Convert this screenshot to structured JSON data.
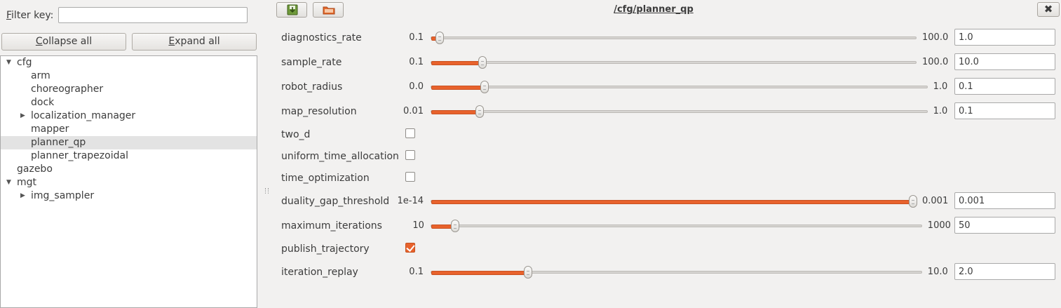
{
  "filter": {
    "label_prefix": "F",
    "label_rest": "ilter key:",
    "value": ""
  },
  "buttons": {
    "collapse_prefix": "C",
    "collapse_rest": "ollapse all",
    "expand_prefix": "E",
    "expand_rest": "xpand all"
  },
  "tree": [
    {
      "label": "cfg",
      "level": 0,
      "expander": "expanded",
      "selected": false
    },
    {
      "label": "arm",
      "level": 1,
      "expander": "none",
      "selected": false
    },
    {
      "label": "choreographer",
      "level": 1,
      "expander": "none",
      "selected": false
    },
    {
      "label": "dock",
      "level": 1,
      "expander": "none",
      "selected": false
    },
    {
      "label": "localization_manager",
      "level": 1,
      "expander": "collapsed",
      "selected": false
    },
    {
      "label": "mapper",
      "level": 1,
      "expander": "none",
      "selected": false
    },
    {
      "label": "planner_qp",
      "level": 1,
      "expander": "none",
      "selected": true
    },
    {
      "label": "planner_trapezoidal",
      "level": 1,
      "expander": "none",
      "selected": false
    },
    {
      "label": "gazebo",
      "level": 0,
      "expander": "none",
      "selected": false
    },
    {
      "label": "mgt",
      "level": 0,
      "expander": "expanded",
      "selected": false
    },
    {
      "label": "img_sampler",
      "level": 1,
      "expander": "collapsed",
      "selected": false
    }
  ],
  "panel": {
    "title": "/cfg/planner_qp",
    "close_glyph": "✖"
  },
  "params": [
    {
      "name": "diagnostics_rate",
      "type": "slider",
      "min": "0.1",
      "max": "100.0",
      "value": "1.0",
      "fraction": 0.009
    },
    {
      "name": "sample_rate",
      "type": "slider",
      "min": "0.1",
      "max": "100.0",
      "value": "10.0",
      "fraction": 0.099
    },
    {
      "name": "robot_radius",
      "type": "slider",
      "min": "0.0",
      "max": "1.0",
      "value": "0.1",
      "fraction": 0.1
    },
    {
      "name": "map_resolution",
      "type": "slider",
      "min": "0.01",
      "max": "1.0",
      "value": "0.1",
      "fraction": 0.091
    },
    {
      "name": "two_d",
      "type": "checkbox",
      "checked": false
    },
    {
      "name": "uniform_time_allocation",
      "type": "checkbox",
      "checked": false
    },
    {
      "name": "time_optimization",
      "type": "checkbox",
      "checked": false
    },
    {
      "name": "duality_gap_threshold",
      "type": "slider",
      "min": "1e-14",
      "max": "0.001",
      "value": "0.001",
      "fraction": 1.0
    },
    {
      "name": "maximum_iterations",
      "type": "slider",
      "min": "10",
      "max": "1000",
      "value": "50",
      "fraction": 0.04
    },
    {
      "name": "publish_trajectory",
      "type": "checkbox",
      "checked": true
    },
    {
      "name": "iteration_replay",
      "type": "slider",
      "min": "0.1",
      "max": "10.0",
      "value": "2.0",
      "fraction": 0.192
    }
  ],
  "colors": {
    "accent": "#e8622c",
    "selection": "#e3e3e3"
  },
  "icons": {
    "save": "save-icon",
    "open": "open-folder-icon",
    "expanded": "triangle-down-icon",
    "collapsed": "triangle-right-icon"
  }
}
